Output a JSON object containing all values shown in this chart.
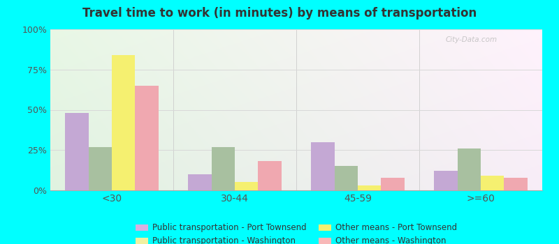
{
  "title": "Travel time to work (in minutes) by means of transportation",
  "categories": [
    "<30",
    "30-44",
    "45-59",
    ">=60"
  ],
  "series": {
    "pub_trans_port_townsend": [
      48,
      10,
      30,
      12
    ],
    "pub_trans_washington": [
      27,
      27,
      15,
      26
    ],
    "other_means_port_townsend": [
      84,
      5,
      3,
      9
    ],
    "other_means_washington": [
      65,
      18,
      8,
      8
    ]
  },
  "bar_colors": {
    "pub_trans_port_townsend": "#c4a8d4",
    "pub_trans_washington": "#a8c0a0",
    "other_means_port_townsend": "#f5f070",
    "other_means_washington": "#f0a8b0"
  },
  "legend_labels": {
    "pub_trans_port_townsend": "Public transportation - Port Townsend",
    "pub_trans_washington": "Public transportation - Washington",
    "other_means_port_townsend": "Other means - Port Townsend",
    "other_means_washington": "Other means - Washington"
  },
  "legend_marker_colors": {
    "pub_trans_port_townsend": "#d8b0e0",
    "pub_trans_washington": "#f0f0a0",
    "other_means_port_townsend": "#f5f070",
    "other_means_washington": "#f8b8b8"
  },
  "ylim": [
    0,
    100
  ],
  "yticks": [
    0,
    25,
    50,
    75,
    100
  ],
  "ytick_labels": [
    "0%",
    "25%",
    "50%",
    "75%",
    "100%"
  ],
  "background_color": "#00ffff",
  "grid_color": "#d8d8d8",
  "title_color": "#333333",
  "bar_order": [
    "pub_trans_port_townsend",
    "pub_trans_washington",
    "other_means_port_townsend",
    "other_means_washington"
  ]
}
